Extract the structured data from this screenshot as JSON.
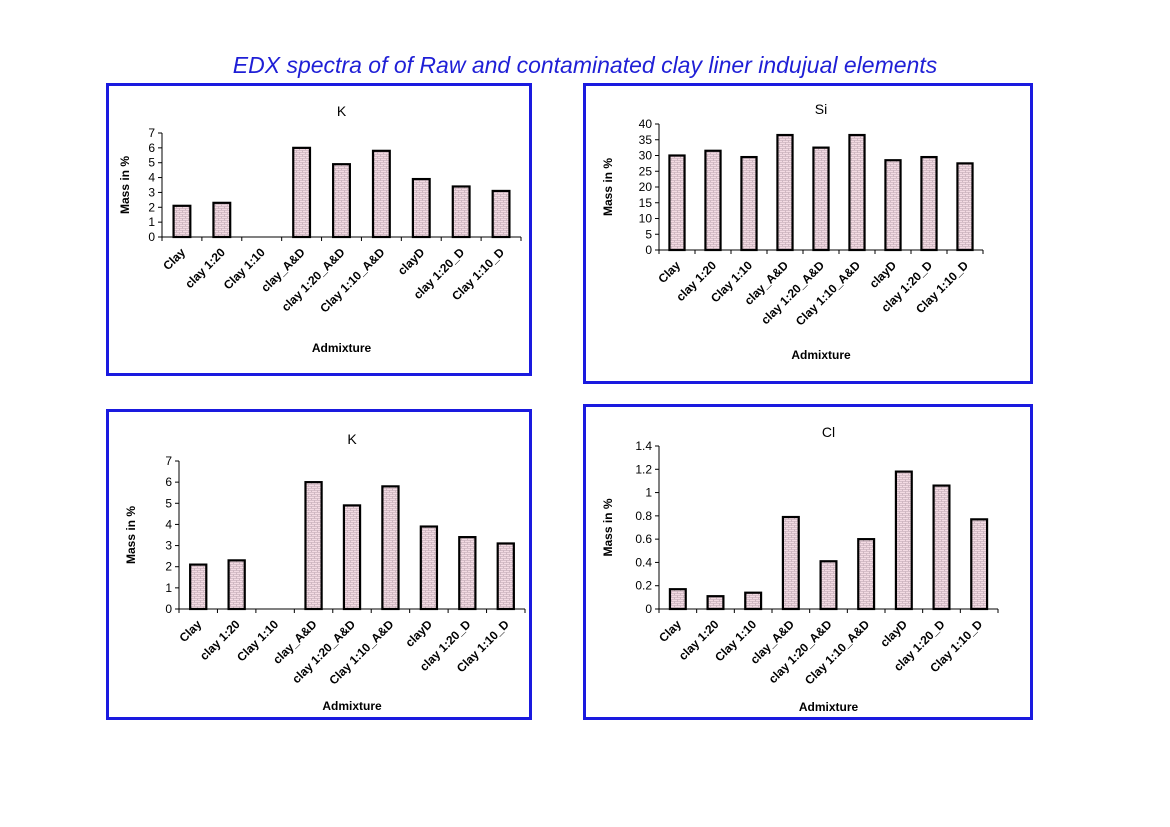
{
  "title": "EDX spectra of of  Raw and contaminated clay liner  indujual elements",
  "colors": {
    "frame": "#1a1adf",
    "title": "#1f1fd6",
    "bar_fill": "#f3dbe3",
    "bar_brick": "#b9a2ad",
    "bar_edge": "#000000"
  },
  "chart_data": [
    {
      "type": "bar",
      "title": "K",
      "xlabel": "Admixture",
      "ylabel": "Mass in %",
      "ylim": [
        0,
        7
      ],
      "yticks": [
        "0",
        "1",
        "2",
        "3",
        "4",
        "5",
        "6",
        "7"
      ],
      "categories": [
        "Clay",
        "clay 1:20",
        "Clay 1:10",
        "clay_A&D",
        "clay 1:20_A&D",
        "Clay 1:10_A&D",
        "clayD",
        "clay 1:20_D",
        "Clay 1:10_D"
      ],
      "values": [
        2.1,
        2.3,
        0,
        6.0,
        4.9,
        5.8,
        3.9,
        3.4,
        3.1
      ],
      "grid": false,
      "legend": "none"
    },
    {
      "type": "bar",
      "title": "Si",
      "xlabel": "Admixture",
      "ylabel": "Mass in %",
      "ylim": [
        0,
        40
      ],
      "yticks": [
        "0",
        "5",
        "10",
        "15",
        "20",
        "25",
        "30",
        "35",
        "40"
      ],
      "categories": [
        "Clay",
        "clay 1:20",
        "Clay 1:10",
        "clay_A&D",
        "clay 1:20_A&D",
        "Clay 1:10_A&D",
        "clayD",
        "clay 1:20_D",
        "Clay 1:10_D"
      ],
      "values": [
        30,
        31.5,
        29.5,
        36.5,
        32.5,
        36.5,
        28.5,
        29.5,
        27.5
      ],
      "grid": false,
      "legend": "none"
    },
    {
      "type": "bar",
      "title": "K",
      "xlabel": "Admixture",
      "ylabel": "Mass in %",
      "ylim": [
        0,
        7
      ],
      "yticks": [
        "0",
        "1",
        "2",
        "3",
        "4",
        "5",
        "6",
        "7"
      ],
      "categories": [
        "Clay",
        "clay 1:20",
        "Clay 1:10",
        "clay_A&D",
        "clay 1:20_A&D",
        "Clay 1:10_A&D",
        "clayD",
        "clay 1:20_D",
        "Clay 1:10_D"
      ],
      "values": [
        2.1,
        2.3,
        0,
        6.0,
        4.9,
        5.8,
        3.9,
        3.4,
        3.1
      ],
      "grid": false,
      "legend": "none"
    },
    {
      "type": "bar",
      "title": "Cl",
      "xlabel": "Admixture",
      "ylabel": "Mass in %",
      "ylim": [
        0,
        1.4
      ],
      "yticks": [
        "0",
        "0.2",
        "0.4",
        "0.6",
        "0.8",
        "1",
        "1.2",
        "1.4"
      ],
      "categories": [
        "Clay",
        "clay 1:20",
        "Clay 1:10",
        "clay_A&D",
        "clay 1:20_A&D",
        "Clay 1:10_A&D",
        "clayD",
        "clay 1:20_D",
        "Clay 1:10_D"
      ],
      "values": [
        0.17,
        0.11,
        0.14,
        0.79,
        0.41,
        0.6,
        1.18,
        1.06,
        0.77
      ],
      "grid": false,
      "legend": "none"
    }
  ]
}
